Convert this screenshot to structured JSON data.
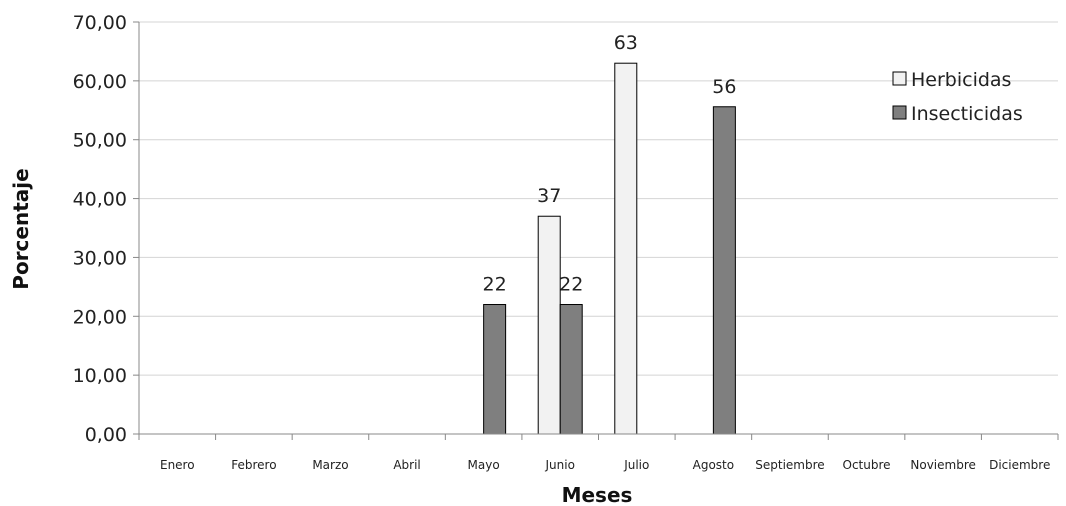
{
  "chart_data": {
    "type": "bar",
    "categories": [
      "Enero",
      "Febrero",
      "Marzo",
      "Abril",
      "Mayo",
      "Junio",
      "Julio",
      "Agosto",
      "Septiembre",
      "Octubre",
      "Noviembre",
      "Diciembre"
    ],
    "series": [
      {
        "name": "Herbicidas",
        "color": "#f2f2f2",
        "values": [
          null,
          null,
          null,
          null,
          null,
          37,
          63,
          null,
          null,
          null,
          null,
          null
        ],
        "labels": [
          null,
          null,
          null,
          null,
          null,
          "37",
          "63",
          null,
          null,
          null,
          null,
          null
        ]
      },
      {
        "name": "Insecticidas",
        "color": "#7f7f7f",
        "values": [
          null,
          null,
          null,
          null,
          22,
          22,
          null,
          55.6,
          null,
          null,
          null,
          null
        ],
        "labels": [
          null,
          null,
          null,
          null,
          "22",
          "22",
          null,
          "56",
          null,
          null,
          null,
          null
        ]
      }
    ],
    "xlabel": "Meses",
    "ylabel": "Porcentaje",
    "ylim": [
      0,
      70
    ],
    "yticks": [
      "0,00",
      "10,00",
      "20,00",
      "30,00",
      "40,00",
      "50,00",
      "60,00",
      "70,00"
    ],
    "grid": true,
    "legend_position": "top-right"
  }
}
